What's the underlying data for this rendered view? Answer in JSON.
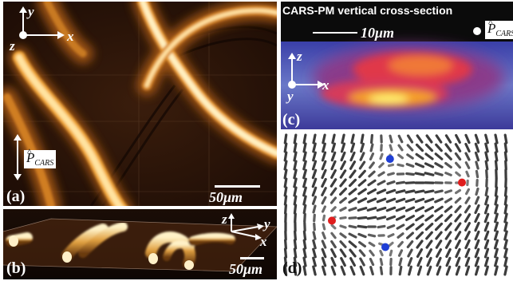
{
  "panel_a": {
    "label": "(a)",
    "axes": {
      "y": "y",
      "x": "x",
      "z": "z"
    },
    "polarization": {
      "symbol": "P",
      "subscript": "CARS"
    },
    "scale_bar": "50μm"
  },
  "panel_b": {
    "label": "(b)",
    "axes": {
      "z": "z",
      "y": "y",
      "x": "x"
    },
    "scale_bar": "50μm"
  },
  "panel_c": {
    "title": "CARS-PM vertical cross-section",
    "scale_bar": "10μm",
    "polarization": {
      "symbol": "P",
      "subscript": "CARS"
    },
    "axes": {
      "z": "z",
      "y": "y",
      "x": "x"
    },
    "label": "(c)"
  },
  "panel_d": {
    "label": "(d)",
    "defects": [
      {
        "color": "#1f3fd6",
        "u": 0.47,
        "v": 0.18
      },
      {
        "color": "#e01e1e",
        "u": 0.78,
        "v": 0.34
      },
      {
        "color": "#e01e1e",
        "u": 0.22,
        "v": 0.6
      },
      {
        "color": "#1f3fd6",
        "u": 0.45,
        "v": 0.78
      }
    ]
  }
}
